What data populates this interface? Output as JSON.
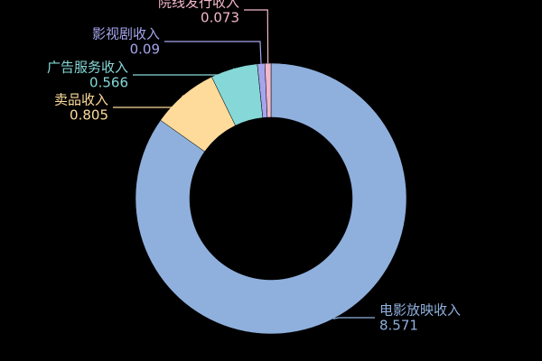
{
  "chart_data": {
    "type": "donut",
    "categories": [
      "电影放映收入",
      "卖品收入",
      "广告服务收入",
      "影视剧收入",
      "院线发行收入"
    ],
    "values": [
      8.571,
      0.805,
      0.566,
      0.09,
      0.073
    ],
    "colors": [
      "#8fb0dd",
      "#fedb9a",
      "#86d8d8",
      "#a5a5ee",
      "#f2b8cc"
    ]
  }
}
